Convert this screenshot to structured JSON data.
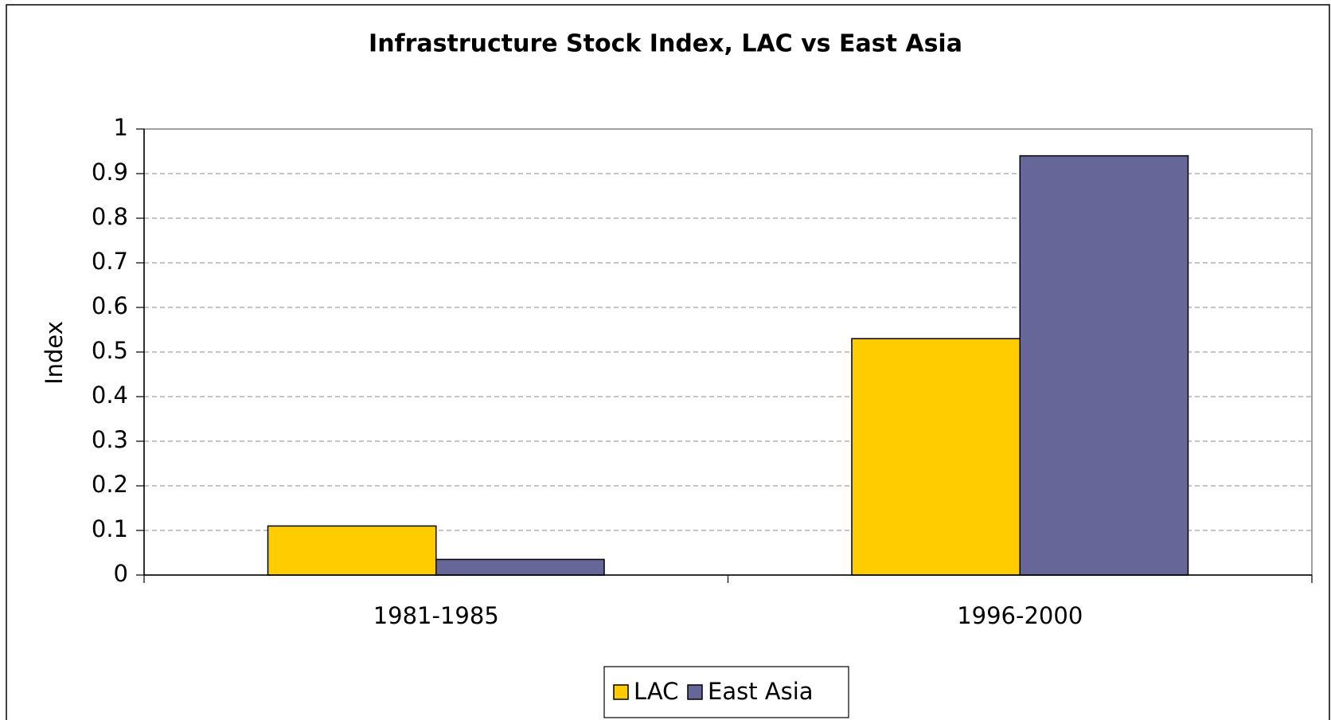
{
  "chart_data": {
    "type": "bar",
    "title": "Infrastructure Stock Index, LAC vs East Asia",
    "y_label": "Index",
    "categories": [
      "1981-1985",
      "1996-2000"
    ],
    "series": [
      {
        "name": "LAC",
        "color": "#ffcc00",
        "values": [
          0.11,
          0.53
        ]
      },
      {
        "name": "East Asia",
        "color": "#666699",
        "values": [
          0.035,
          0.94
        ]
      }
    ],
    "ylim": [
      0,
      1
    ],
    "yticks": [
      0,
      0.1,
      0.2,
      0.3,
      0.4,
      0.5,
      0.6,
      0.7,
      0.8,
      0.9,
      1
    ],
    "grid": true,
    "legend": "bottom"
  }
}
